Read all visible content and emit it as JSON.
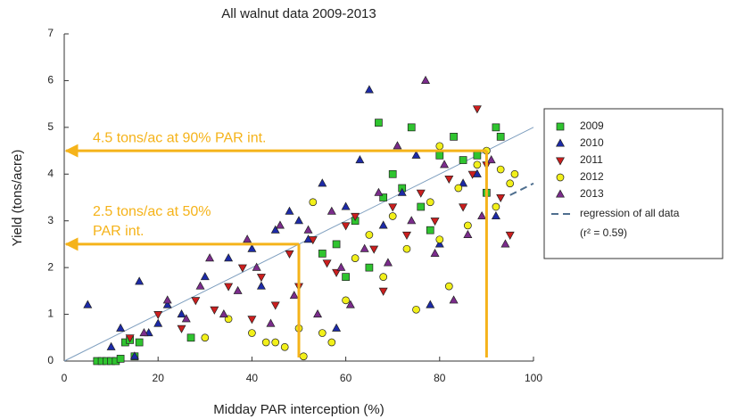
{
  "chart_data": {
    "type": "scatter",
    "title": "All walnut data 2009-2013",
    "x_label": "Midday PAR interception (%)",
    "y_label": "Yield (tons/acre)",
    "xlim": [
      0,
      100
    ],
    "xticks": [
      0,
      20,
      40,
      60,
      80,
      100
    ],
    "ylim": [
      0,
      7
    ],
    "yticks": [
      0,
      1,
      2,
      3,
      4,
      5,
      6,
      7
    ],
    "series": [
      {
        "name": "2009",
        "color": "#2fc42f",
        "marker": "square",
        "x": [
          7,
          8,
          9,
          10,
          11,
          12,
          13,
          14,
          15,
          16,
          27,
          55,
          58,
          62,
          65,
          67,
          70,
          72,
          74,
          76,
          80,
          83,
          85,
          88,
          90,
          92,
          93,
          60,
          78,
          68
        ],
        "values": [
          0,
          0,
          0,
          0,
          0,
          0.05,
          0.4,
          0.45,
          0.1,
          0.4,
          0.5,
          2.3,
          2.5,
          3.0,
          2.0,
          5.1,
          4.0,
          3.7,
          5.0,
          3.3,
          4.4,
          4.8,
          4.3,
          4.4,
          3.6,
          5.0,
          4.8,
          1.8,
          2.8,
          3.5
        ]
      },
      {
        "name": "2010",
        "color": "#1c2aa8",
        "marker": "triangle",
        "x": [
          5,
          10,
          12,
          15,
          16,
          18,
          20,
          22,
          25,
          30,
          35,
          40,
          42,
          45,
          48,
          52,
          55,
          60,
          63,
          65,
          68,
          72,
          75,
          80,
          85,
          78,
          58,
          88,
          92,
          50
        ],
        "values": [
          1.2,
          0.3,
          0.7,
          0.1,
          1.7,
          0.6,
          0.8,
          1.2,
          1.0,
          1.8,
          2.2,
          2.4,
          1.6,
          2.8,
          3.2,
          2.6,
          3.8,
          3.3,
          4.3,
          5.8,
          2.9,
          3.6,
          4.4,
          2.5,
          3.8,
          1.2,
          0.7,
          4.0,
          3.1,
          3.0
        ]
      },
      {
        "name": "2011",
        "color": "#cc1e1e",
        "marker": "triangle-down",
        "x": [
          14,
          20,
          25,
          28,
          32,
          35,
          38,
          42,
          45,
          48,
          50,
          53,
          56,
          60,
          62,
          66,
          70,
          73,
          76,
          79,
          82,
          85,
          88,
          90,
          93,
          58,
          68,
          87,
          95,
          40
        ],
        "values": [
          0.5,
          1.0,
          0.7,
          1.3,
          1.1,
          1.6,
          2.0,
          1.8,
          1.2,
          2.3,
          1.6,
          2.6,
          2.1,
          2.9,
          3.1,
          2.4,
          3.3,
          2.7,
          3.6,
          3.0,
          3.9,
          3.3,
          5.4,
          4.2,
          3.5,
          1.9,
          1.5,
          4.0,
          2.7,
          0.9
        ]
      },
      {
        "name": "2012",
        "color": "#f2f01a",
        "marker": "circle",
        "x": [
          30,
          35,
          40,
          43,
          45,
          47,
          50,
          51,
          55,
          57,
          60,
          62,
          65,
          68,
          70,
          73,
          75,
          78,
          80,
          82,
          84,
          86,
          88,
          90,
          92,
          93,
          95,
          96,
          80,
          53
        ],
        "values": [
          0.5,
          0.9,
          0.6,
          0.4,
          0.4,
          0.3,
          0.7,
          0.1,
          0.6,
          0.4,
          1.3,
          2.2,
          2.7,
          1.8,
          3.1,
          2.4,
          1.1,
          3.4,
          2.6,
          1.6,
          3.7,
          2.9,
          4.2,
          4.5,
          3.3,
          4.1,
          3.8,
          4.0,
          4.6,
          3.4
        ]
      },
      {
        "name": "2013",
        "color": "#7b2c8c",
        "marker": "triangle",
        "x": [
          17,
          22,
          26,
          29,
          31,
          34,
          37,
          39,
          41,
          44,
          46,
          49,
          52,
          54,
          57,
          59,
          61,
          64,
          67,
          69,
          71,
          74,
          77,
          79,
          81,
          83,
          86,
          89,
          91,
          94
        ],
        "values": [
          0.6,
          1.3,
          0.9,
          1.6,
          2.2,
          1.0,
          1.5,
          2.6,
          2.0,
          0.8,
          2.9,
          1.4,
          2.8,
          1.0,
          3.2,
          2.0,
          1.2,
          2.4,
          3.6,
          2.1,
          4.6,
          3.0,
          6.0,
          2.3,
          4.2,
          1.3,
          2.7,
          3.1,
          4.3,
          2.5
        ]
      }
    ],
    "reference_line": {
      "color": "#7f9fbf",
      "x": [
        0,
        100
      ],
      "values": [
        0,
        5
      ]
    },
    "regression": {
      "name": "regression of all data",
      "note": "(r² = 0.59)",
      "color": "#4f6f8f",
      "x": [
        95,
        100
      ],
      "values": [
        3.55,
        3.8
      ]
    },
    "annotations": [
      {
        "lines": [
          "4.5 tons/ac at 90% PAR int."
        ],
        "x": 90,
        "y": 4.5,
        "color": "#f5b31a"
      },
      {
        "lines": [
          "2.5 tons/ac at 50%",
          "PAR int."
        ],
        "x": 50,
        "y": 2.5,
        "color": "#f5b31a"
      }
    ]
  }
}
